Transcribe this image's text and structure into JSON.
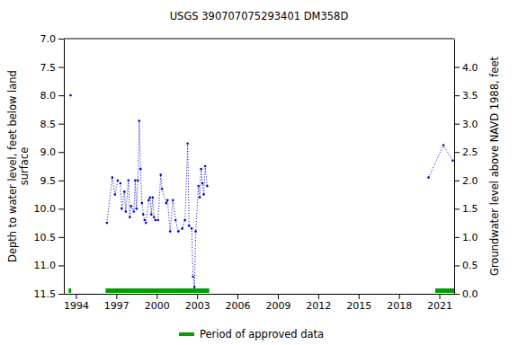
{
  "chart_data": {
    "type": "line",
    "title": "USGS 390707075293401 DM358D",
    "ylabel": [
      "Depth to water level, feet below land",
      "surface"
    ],
    "y2label": "Groundwater level above NAVD 1988, feet",
    "x": [
      1993.6,
      1993.7,
      1996.3,
      1996.7,
      1996.9,
      1997.1,
      1997.3,
      1997.4,
      1997.6,
      1997.7,
      1997.9,
      1998.0,
      1998.1,
      1998.3,
      1998.4,
      1998.5,
      1998.6,
      1998.7,
      1998.8,
      1998.9,
      1999.0,
      1999.1,
      1999.2,
      1999.4,
      1999.5,
      1999.6,
      1999.7,
      1999.8,
      1999.9,
      2000.1,
      2000.3,
      2000.4,
      2000.7,
      2000.8,
      2001.0,
      2001.2,
      2001.4,
      2001.6,
      2001.9,
      2002.1,
      2002.3,
      2002.4,
      2002.6,
      2002.7,
      2002.8,
      2002.9,
      2003.1,
      2003.2,
      2003.3,
      2003.4,
      2003.5,
      2003.6,
      2003.75,
      2012.0,
      2020.2,
      2021.3,
      2022.0
    ],
    "series": [
      {
        "name": "Depth to water level",
        "color": "#0000cc",
        "marker": "dot",
        "line_style": "dotted",
        "values": [
          8.0,
          null,
          10.25,
          9.45,
          9.75,
          9.5,
          9.55,
          10.0,
          9.7,
          10.05,
          9.5,
          10.15,
          9.95,
          10.05,
          9.5,
          10.0,
          9.5,
          8.45,
          9.3,
          9.9,
          10.1,
          10.2,
          10.25,
          9.85,
          9.8,
          10.1,
          9.8,
          10.15,
          10.2,
          10.2,
          9.4,
          9.65,
          9.9,
          9.85,
          10.4,
          9.85,
          10.2,
          10.4,
          10.35,
          10.2,
          8.85,
          10.3,
          10.35,
          11.2,
          11.38,
          10.4,
          9.6,
          9.8,
          9.3,
          9.55,
          9.75,
          9.25,
          9.6,
          null,
          9.45,
          8.88,
          9.15
        ]
      }
    ],
    "approved": {
      "name": "Period of approved data",
      "color": "#00a000",
      "periods": [
        [
          1993.45,
          1993.65
        ],
        [
          1996.2,
          2003.9
        ],
        [
          2020.7,
          2022.1
        ]
      ]
    },
    "xlim": [
      1993.1,
      2022.1
    ],
    "xticks": [
      1994,
      1997,
      2000,
      2003,
      2006,
      2009,
      2012,
      2015,
      2018,
      2021
    ],
    "ylim": [
      7.0,
      11.5
    ],
    "yticks": [
      {
        "value": 7.0,
        "label": "7.0"
      },
      {
        "value": 7.5,
        "label": "7.5"
      },
      {
        "value": 8.0,
        "label": "8.0"
      },
      {
        "value": 8.5,
        "label": "8.5"
      },
      {
        "value": 9.0,
        "label": "9.0"
      },
      {
        "value": 9.5,
        "label": "9.5"
      },
      {
        "value": 10.0,
        "label": "10.0"
      },
      {
        "value": 10.5,
        "label": "10.5"
      },
      {
        "value": 11.0,
        "label": "11.0"
      },
      {
        "value": 11.5,
        "label": "11.5"
      }
    ],
    "y2lim": [
      4.5,
      0.0
    ],
    "y2ticks": [
      {
        "value": 0.0,
        "label": "0.0"
      },
      {
        "value": 0.5,
        "label": "0.5"
      },
      {
        "value": 1.0,
        "label": "1.0"
      },
      {
        "value": 1.5,
        "label": "1.5"
      },
      {
        "value": 2.0,
        "label": "2.0"
      },
      {
        "value": 2.5,
        "label": "2.5"
      },
      {
        "value": 3.0,
        "label": "3.0"
      },
      {
        "value": 3.5,
        "label": "3.5"
      },
      {
        "value": 4.0,
        "label": "4.0"
      }
    ],
    "grid": false,
    "legend": "bottom"
  }
}
